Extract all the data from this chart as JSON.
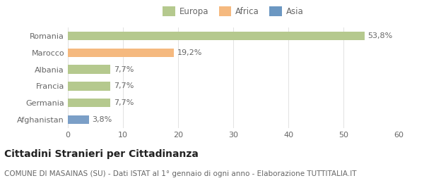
{
  "categories": [
    "Romania",
    "Marocco",
    "Albania",
    "Francia",
    "Germania",
    "Afghanistan"
  ],
  "values": [
    53.8,
    19.2,
    7.7,
    7.7,
    7.7,
    3.8
  ],
  "labels": [
    "53,8%",
    "19,2%",
    "7,7%",
    "7,7%",
    "7,7%",
    "3,8%"
  ],
  "colors": [
    "#b5c98e",
    "#f5b97f",
    "#b5c98e",
    "#b5c98e",
    "#b5c98e",
    "#7b9fc7"
  ],
  "legend_items": [
    {
      "label": "Europa",
      "color": "#b5c98e"
    },
    {
      "label": "Africa",
      "color": "#f5b97f"
    },
    {
      "label": "Asia",
      "color": "#6b97c2"
    }
  ],
  "xlim": [
    0,
    60
  ],
  "xticks": [
    0,
    10,
    20,
    30,
    40,
    50,
    60
  ],
  "title": "Cittadini Stranieri per Cittadinanza",
  "subtitle": "COMUNE DI MASAINAS (SU) - Dati ISTAT al 1° gennaio di ogni anno - Elaborazione TUTTITALIA.IT",
  "background_color": "#ffffff",
  "bar_height": 0.52,
  "title_fontsize": 10,
  "subtitle_fontsize": 7.5,
  "label_fontsize": 8,
  "tick_fontsize": 8,
  "legend_fontsize": 8.5
}
